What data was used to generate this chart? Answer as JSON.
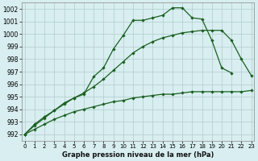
{
  "title": "Graphe pression niveau de la mer (hPa)",
  "background_color": "#d8eef0",
  "grid_color": "#b0cccc",
  "xlim": [
    -0.3,
    23.3
  ],
  "ylim": [
    991.5,
    1002.5
  ],
  "yticks": [
    992,
    993,
    994,
    995,
    996,
    997,
    998,
    999,
    1000,
    1001,
    1002
  ],
  "xticks": [
    0,
    1,
    2,
    3,
    4,
    5,
    6,
    7,
    8,
    9,
    10,
    11,
    12,
    13,
    14,
    15,
    16,
    17,
    18,
    19,
    20,
    21,
    22,
    23
  ],
  "series": [
    {
      "x": [
        0,
        1,
        2,
        3,
        4,
        5,
        6,
        7,
        8,
        9,
        10,
        11,
        12,
        13,
        14,
        15,
        16,
        17,
        18,
        19,
        20,
        21
      ],
      "y": [
        992.0,
        992.8,
        993.4,
        993.9,
        994.4,
        994.9,
        995.2,
        996.6,
        997.3,
        998.8,
        999.9,
        1001.1,
        1001.1,
        1001.3,
        1001.5,
        1002.1,
        1002.1,
        1001.3,
        1001.2,
        999.5,
        997.3,
        996.9
      ],
      "color": "#1a6020"
    },
    {
      "x": [
        0,
        1,
        2,
        3,
        4,
        5,
        6,
        7,
        8,
        9,
        10,
        11,
        12,
        13,
        14,
        15,
        16,
        17,
        18,
        19,
        20,
        21,
        22,
        23
      ],
      "y": [
        992.0,
        992.7,
        993.3,
        993.9,
        994.5,
        994.9,
        995.3,
        995.8,
        996.4,
        997.1,
        997.8,
        998.5,
        999.0,
        999.4,
        999.7,
        999.9,
        1000.1,
        1000.2,
        1000.3,
        1000.3,
        1000.3,
        999.5,
        998.0,
        996.7
      ],
      "color": "#1a6020"
    },
    {
      "x": [
        0,
        1,
        2,
        3,
        4,
        5,
        6,
        7,
        8,
        9,
        10,
        11,
        12,
        13,
        14,
        15,
        16,
        17,
        18,
        19,
        20,
        21,
        22,
        23
      ],
      "y": [
        992.0,
        992.4,
        992.8,
        993.2,
        993.5,
        993.8,
        994.0,
        994.2,
        994.4,
        994.6,
        994.7,
        994.9,
        995.0,
        995.1,
        995.2,
        995.2,
        995.3,
        995.4,
        995.4,
        995.4,
        995.4,
        995.4,
        995.4,
        995.5
      ],
      "color": "#1a6020"
    }
  ]
}
